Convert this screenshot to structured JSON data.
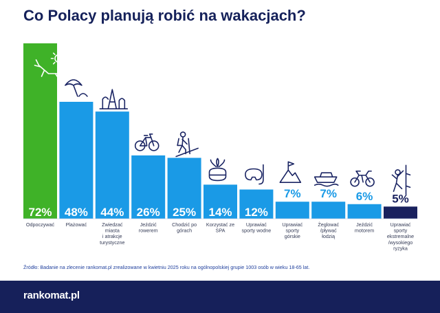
{
  "chart_data": {
    "type": "bar",
    "title": "Co Polacy planują robić na wakacjach?",
    "categories": [
      "Odpoczywać",
      "Plażować",
      "Zwiedzać miasta i atrakcje turystyczne",
      "Jeździć rowerem",
      "Chodzić po górach",
      "Korzystać ze SPA",
      "Uprawiać sporty wodne",
      "Uprawiać sporty górskie",
      "Żeglować /pływać łodzią",
      "Jeździć motorem",
      "Uprawiać sporty ekstremalne /wysokiego ryzyka"
    ],
    "category_lines": [
      [
        "Odpoczywać"
      ],
      [
        "Plażować"
      ],
      [
        "Zwiedzać",
        "miasta",
        "i atrakcje",
        "turystyczne"
      ],
      [
        "Jeździć",
        "rowerem"
      ],
      [
        "Chodzić po",
        "górach"
      ],
      [
        "Korzystać ze",
        "SPA"
      ],
      [
        "Uprawiać",
        "sporty wodne"
      ],
      [
        "Uprawiać",
        "sporty",
        "górskie"
      ],
      [
        "Żeglować",
        "/pływać",
        "łodzią"
      ],
      [
        "Jeździć",
        "motorem"
      ],
      [
        "Uprawiać",
        "sporty",
        "ekstremalne",
        "/wysokiego",
        "ryzyka"
      ]
    ],
    "values": [
      72,
      48,
      44,
      26,
      25,
      14,
      12,
      7,
      7,
      6,
      5
    ],
    "value_labels": [
      "72%",
      "48%",
      "44%",
      "26%",
      "25%",
      "14%",
      "12%",
      "7%",
      "7%",
      "6%",
      "5%"
    ],
    "icons": [
      "sunbed-sun-icon",
      "beach-umbrella-icon",
      "landmarks-icon",
      "bicycle-icon",
      "hiker-icon",
      "spa-icon",
      "diving-mask-icon",
      "mountain-flag-icon",
      "boat-icon",
      "motorbike-icon",
      "climber-icon"
    ],
    "ylim": [
      0,
      72
    ],
    "colors": {
      "highlight": "#3fb228",
      "default": "#1a9ae6",
      "minimum": "#19215e",
      "icon": "#1a2463",
      "label_on_bar": "#ffffff",
      "label_above": "#1a9ae6",
      "label_min": "#19215e"
    }
  },
  "source_note": "Źródło: Badanie na zlecenie rankomat.pl zrealizowane w kwietniu 2025 roku na ogólnopolskiej grupie 1003 osób w wieku 18-65 lat.",
  "brand": {
    "logo_text": "rankomat.pl",
    "footer_color": "#16205a"
  }
}
